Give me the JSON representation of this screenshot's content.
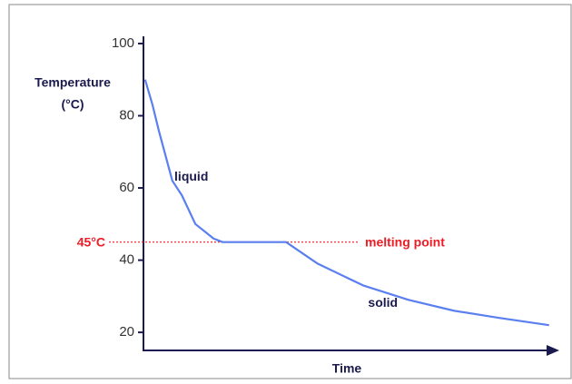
{
  "chart_data": {
    "type": "line",
    "ylabel": [
      "Temperature",
      "(°C)"
    ],
    "xlabel": "Time",
    "x": [
      0.4,
      2.2,
      3.7,
      7,
      9.3,
      12.6,
      17,
      19.2,
      34.6,
      42.3,
      53.3,
      64.3,
      75.3,
      86.3,
      98.4
    ],
    "series": [
      {
        "name": null,
        "color": "#5b7ff0",
        "values": [
          90,
          83,
          76,
          62,
          58,
          50,
          46,
          45,
          45,
          39,
          33,
          29,
          26,
          24,
          22
        ]
      }
    ],
    "xlim": [
      0,
      100
    ],
    "ylim": [
      15,
      102
    ],
    "yticks": [
      20,
      40,
      60,
      80,
      100
    ],
    "reference_line": {
      "value": 45,
      "label": "45°C",
      "name": "melting point",
      "color": "#ee1c25"
    },
    "annotations": [
      {
        "text": "liquid",
        "x": 7.5,
        "y": 63
      },
      {
        "text": "solid",
        "x": 54.5,
        "y": 28
      }
    ]
  }
}
